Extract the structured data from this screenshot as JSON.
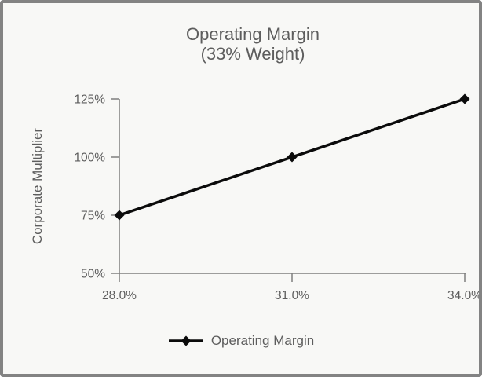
{
  "window": {
    "background_color": "#f8f8f6",
    "border_color": "#838383"
  },
  "colors": {
    "text": "#5d5d5d",
    "axis": "#7f7f7f",
    "series_line": "#0b0b0b"
  },
  "chart_data": {
    "type": "line",
    "title": "Operating Margin",
    "subtitle": "(33% Weight)",
    "xlabel": "",
    "ylabel": "Corporate Multiplier",
    "x": [
      28.0,
      31.0,
      34.0
    ],
    "x_tick_labels": [
      "28.0%",
      "31.0%",
      "34.0%"
    ],
    "xlim": [
      28.0,
      34.0
    ],
    "y_ticks": [
      50,
      75,
      100,
      125
    ],
    "y_tick_labels": [
      "50%",
      "75%",
      "100%",
      "125%"
    ],
    "ylim": [
      50,
      125
    ],
    "grid": false,
    "legend_position": "bottom",
    "marker": "diamond",
    "series": [
      {
        "name": "Operating Margin",
        "values": [
          75,
          100,
          125
        ],
        "color": "#0b0b0b"
      }
    ]
  }
}
